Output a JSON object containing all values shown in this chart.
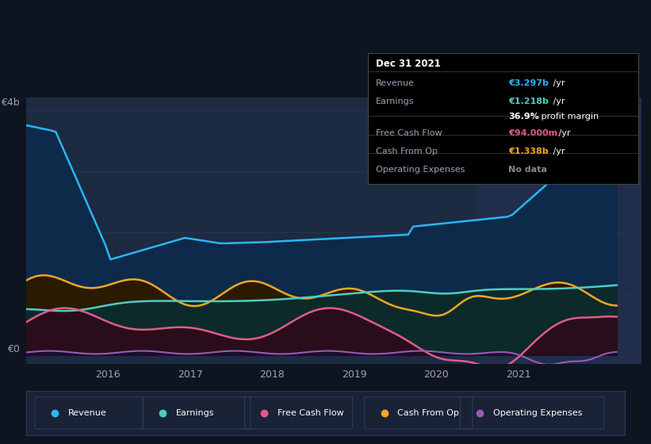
{
  "bg_color": "#0e1420",
  "chart_area_dark": "#111827",
  "chart_area_light": "#1c2a42",
  "grid_color": "#2a3a5c",
  "text_color": "#9aa5b8",
  "white_color": "#ffffff",
  "ylabel_4b": "€4b",
  "ylabel_0": "€0",
  "xticks": [
    "2016",
    "2017",
    "2018",
    "2019",
    "2020",
    "2021"
  ],
  "series_colors": {
    "Revenue": "#29b6f6",
    "Earnings": "#4ecdc4",
    "FreeCashFlow": "#e05c8a",
    "CashFromOp": "#f5a623",
    "OperatingExpenses": "#9b59b6"
  },
  "fill_colors": {
    "Revenue": "#0d2a4a",
    "Earnings": "#0d2a2a",
    "FreeCashFlow": "#2a0d1a",
    "CashFromOp": "#2a1a00",
    "OperatingExpenses": "#1a0d2a"
  },
  "tooltip": {
    "date": "Dec 31 2021",
    "rows": [
      {
        "label": "Revenue",
        "value": "€3.297b",
        "suffix": " /yr",
        "color": "#29b6f6"
      },
      {
        "label": "Earnings",
        "value": "€1.218b",
        "suffix": " /yr",
        "color": "#4ecdc4"
      },
      {
        "label": "",
        "value": "36.9%",
        "suffix": " profit margin",
        "color": "#ffffff"
      },
      {
        "label": "Free Cash Flow",
        "value": "€94.000m",
        "suffix": " /yr",
        "color": "#e05c8a"
      },
      {
        "label": "Cash From Op",
        "value": "€1.338b",
        "suffix": " /yr",
        "color": "#f5a623"
      },
      {
        "label": "Operating Expenses",
        "value": "No data",
        "suffix": "",
        "color": "#888888"
      }
    ]
  },
  "legend_items": [
    {
      "label": "Revenue",
      "color": "#29b6f6"
    },
    {
      "label": "Earnings",
      "color": "#4ecdc4"
    },
    {
      "label": "Free Cash Flow",
      "color": "#e05c8a"
    },
    {
      "label": "Cash From Op",
      "color": "#f5a623"
    },
    {
      "label": "Operating Expenses",
      "color": "#9b59b6"
    }
  ]
}
